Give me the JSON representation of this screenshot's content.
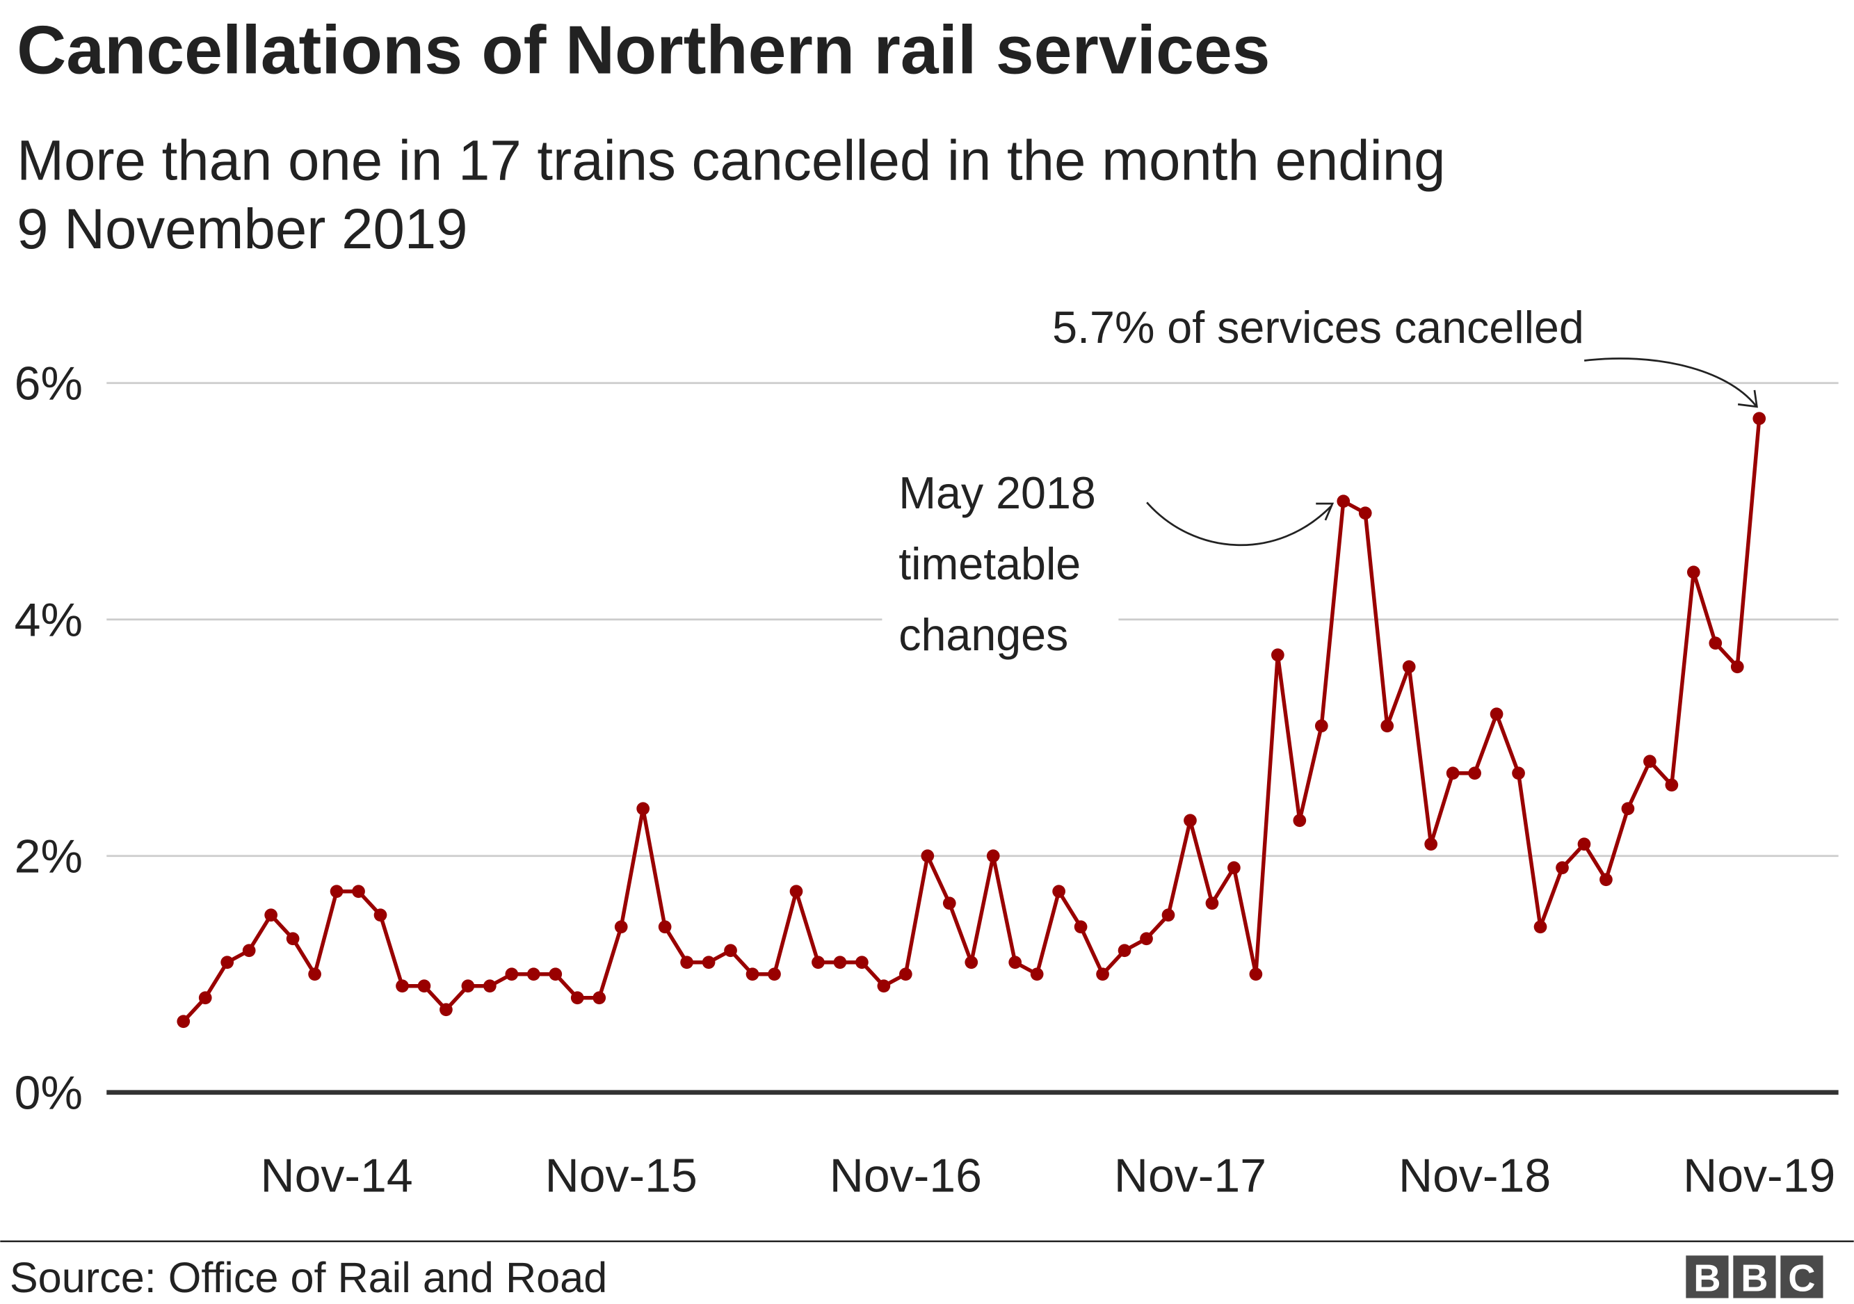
{
  "chart_data": {
    "type": "line",
    "title": "Cancellations of Northern rail services",
    "subtitle_line1": "More than one in 17 trains cancelled in the month ending",
    "subtitle_line2": "9 November 2019",
    "xlabel": "",
    "ylabel": "",
    "ylim": [
      0,
      6
    ],
    "yticks": [
      0,
      2,
      4,
      6
    ],
    "ytick_labels": [
      "0%",
      "2%",
      "4%",
      "6%"
    ],
    "xtick_labels": [
      "Nov-14",
      "Nov-15",
      "Nov-16",
      "Nov-17",
      "Nov-18",
      "Nov-19"
    ],
    "xtick_point_index": [
      7,
      20,
      33,
      46,
      59,
      72
    ],
    "grid": true,
    "line_color": "#990000",
    "series": [
      {
        "values": [
          0.6,
          0.8,
          1.1,
          1.2,
          1.5,
          1.3,
          1.0,
          1.7,
          1.7,
          1.5,
          0.9,
          0.9,
          0.7,
          0.9,
          0.9,
          1.0,
          1.0,
          1.0,
          0.8,
          0.8,
          1.4,
          2.4,
          1.4,
          1.1,
          1.1,
          1.2,
          1.0,
          1.0,
          1.7,
          1.1,
          1.1,
          1.1,
          0.9,
          1.0,
          2.0,
          1.6,
          1.1,
          2.0,
          1.1,
          1.0,
          1.7,
          1.4,
          1.0,
          1.2,
          1.3,
          1.5,
          2.3,
          1.6,
          1.9,
          1.0,
          3.7,
          2.3,
          3.1,
          5.0,
          4.9,
          3.1,
          3.6,
          2.1,
          2.7,
          2.7,
          3.2,
          2.7,
          1.4,
          1.9,
          2.1,
          1.8,
          2.4,
          2.8,
          2.6,
          4.4,
          3.8,
          3.6,
          5.7
        ]
      }
    ],
    "annotations": [
      {
        "lines": [
          "May 2018",
          "timetable",
          "changes"
        ],
        "point_index": 53
      },
      {
        "lines": [
          "5.7% of services cancelled"
        ],
        "point_index": 72
      }
    ]
  },
  "footer": {
    "source": "Source: Office of Rail and Road",
    "logo": "BBC"
  }
}
